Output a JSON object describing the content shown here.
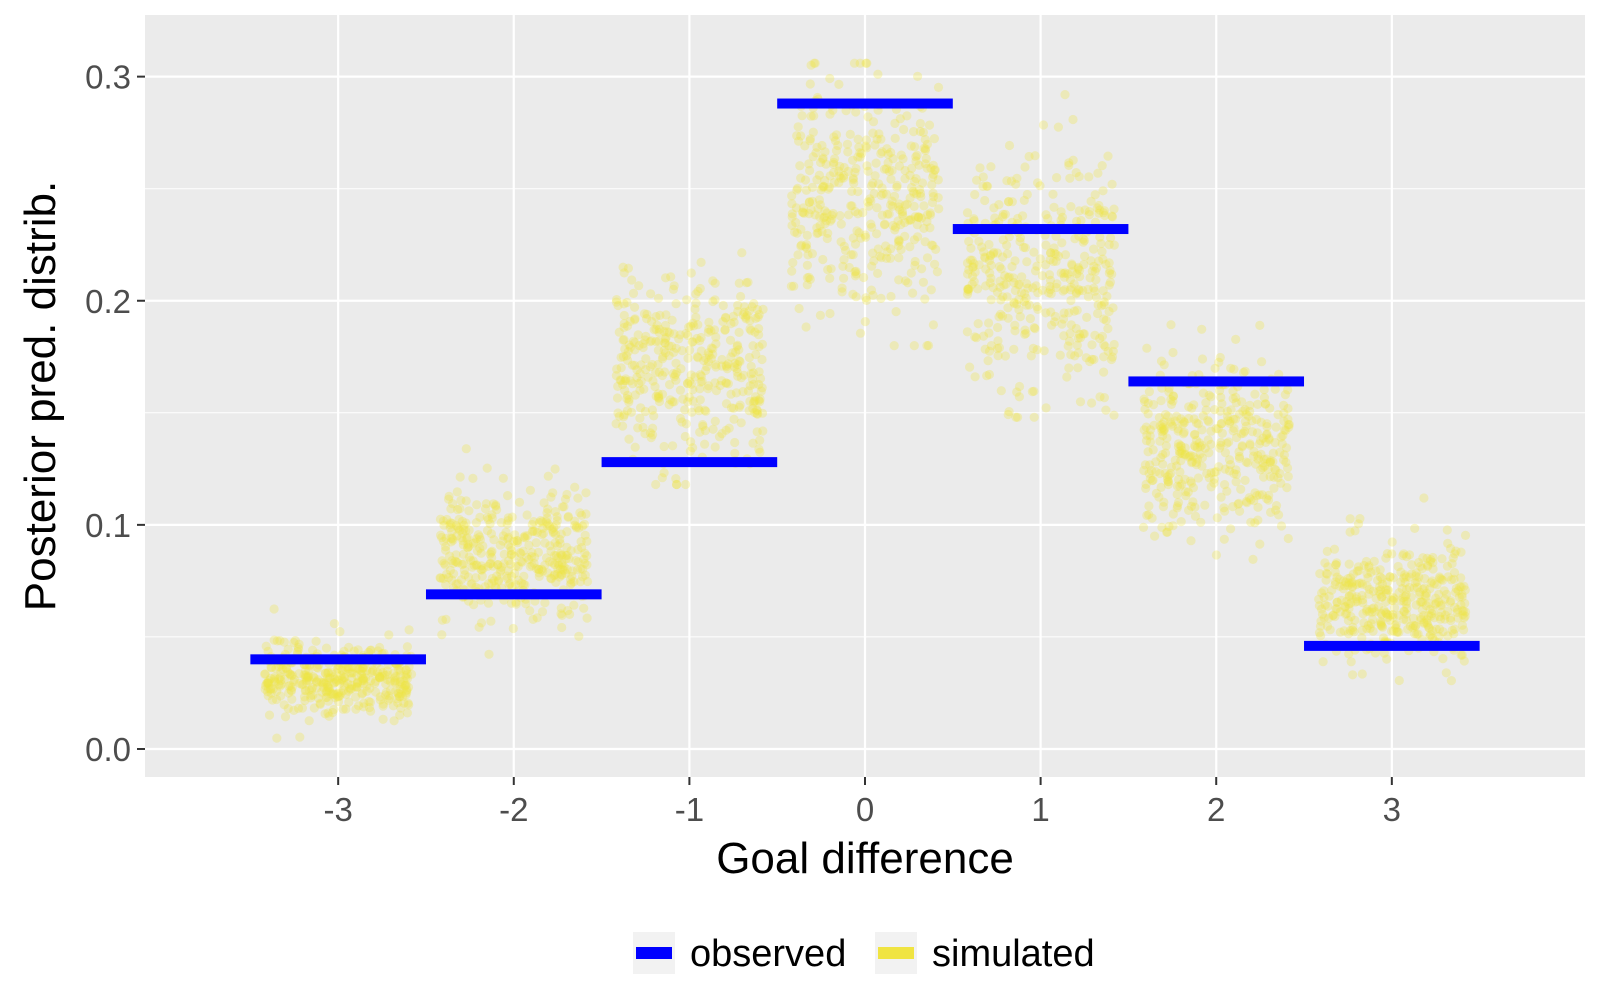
{
  "chart_data": {
    "type": "scatter",
    "xlabel": "Goal difference",
    "ylabel": "Posterior pred. distrib.",
    "xlim": [
      -3.5,
      3.5
    ],
    "ylim": [
      0.0,
      0.3
    ],
    "grid": true,
    "legend_position": "bottom",
    "x_ticks": [
      "-3",
      "-2",
      "-1",
      "0",
      "1",
      "2",
      "3"
    ],
    "y_ticks": [
      "0.0",
      "0.1",
      "0.2",
      "0.3"
    ],
    "observed": {
      "name": "observed",
      "color": "#0000FF",
      "x": [
        -3,
        -2,
        -1,
        0,
        1,
        2,
        3
      ],
      "values": [
        0.04,
        0.069,
        0.128,
        0.288,
        0.232,
        0.164,
        0.046
      ]
    },
    "simulated": {
      "name": "simulated",
      "color": "#F0E442",
      "x": [
        -3,
        -2,
        -1,
        0,
        1,
        2,
        3
      ],
      "center": [
        0.032,
        0.085,
        0.17,
        0.245,
        0.213,
        0.135,
        0.065
      ],
      "spread": [
        0.008,
        0.015,
        0.022,
        0.025,
        0.025,
        0.019,
        0.013
      ],
      "min": [
        0.003,
        0.04,
        0.118,
        0.18,
        0.148,
        0.07,
        0.015
      ],
      "max": [
        0.066,
        0.134,
        0.243,
        0.306,
        0.292,
        0.19,
        0.112
      ]
    },
    "legend": [
      {
        "key": "observed",
        "label": "observed",
        "color": "#0000FF"
      },
      {
        "key": "simulated",
        "label": "simulated",
        "color": "#F0E442"
      }
    ]
  }
}
